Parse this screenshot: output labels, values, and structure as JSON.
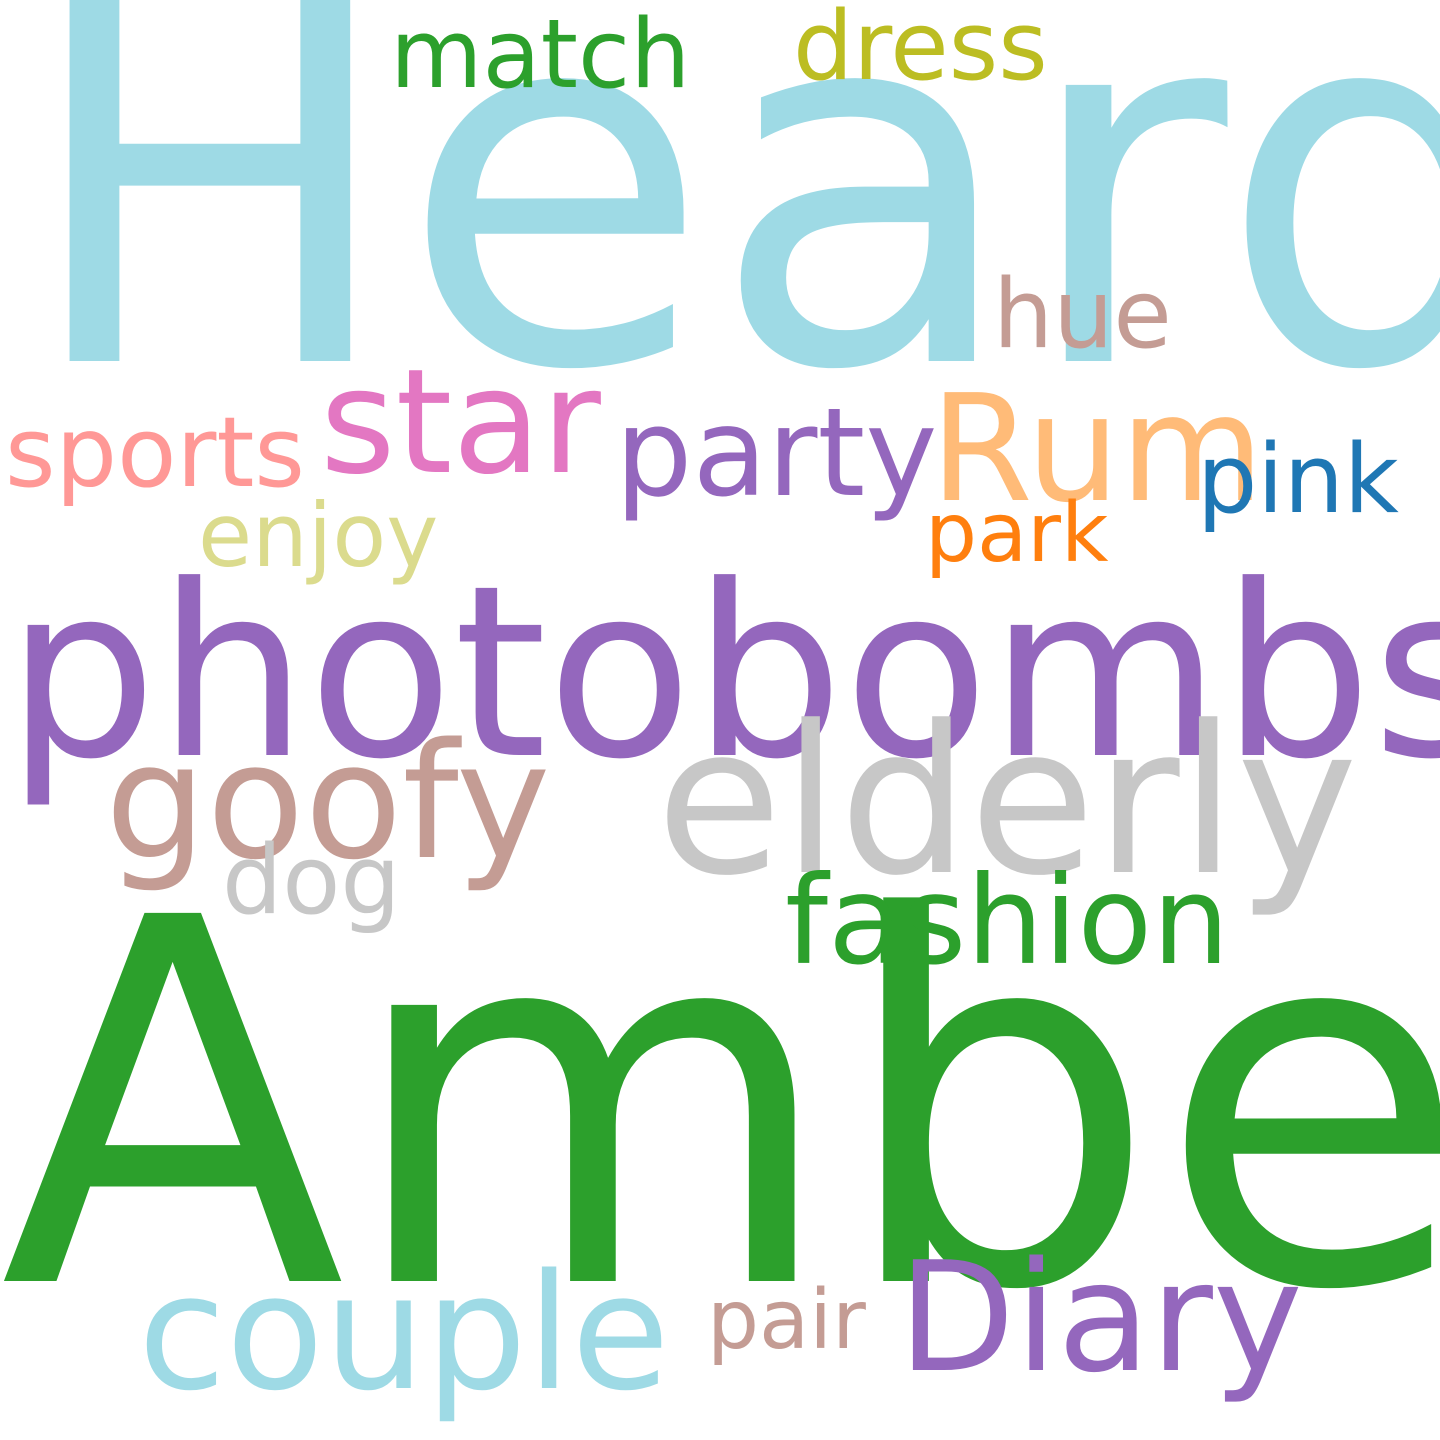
{
  "words": [
    {
      "id": "heard",
      "text": "Heard",
      "color": "#9edae5"
    },
    {
      "id": "amber",
      "text": "Amber",
      "color": "#2ca02c"
    },
    {
      "id": "photobombs",
      "text": "photobombs",
      "color": "#9467bd"
    },
    {
      "id": "elderly",
      "text": "elderly",
      "color": "#c7c7c7"
    },
    {
      "id": "star",
      "text": "star",
      "color": "#e377c2"
    },
    {
      "id": "rum",
      "text": "Rum",
      "color": "#ffbb78"
    },
    {
      "id": "goofy",
      "text": "goofy",
      "color": "#c49c94"
    },
    {
      "id": "couple",
      "text": "couple",
      "color": "#9edae5"
    },
    {
      "id": "diary",
      "text": "Diary",
      "color": "#9467bd"
    },
    {
      "id": "party",
      "text": "party",
      "color": "#9467bd"
    },
    {
      "id": "fashion",
      "text": "fashion",
      "color": "#2ca02c"
    },
    {
      "id": "sports",
      "text": "sports",
      "color": "#ff9896"
    },
    {
      "id": "pink",
      "text": "pink",
      "color": "#1f77b4"
    },
    {
      "id": "match",
      "text": "match",
      "color": "#2ca02c"
    },
    {
      "id": "dress",
      "text": "dress",
      "color": "#bcbd22"
    },
    {
      "id": "hue",
      "text": "hue",
      "color": "#c49c94"
    },
    {
      "id": "dog",
      "text": "dog",
      "color": "#c7c7c7"
    },
    {
      "id": "enjoy",
      "text": "enjoy",
      "color": "#dbdb8d"
    },
    {
      "id": "park",
      "text": "park",
      "color": "#ff7f0e"
    },
    {
      "id": "pair",
      "text": "pair",
      "color": "#c49c94"
    }
  ]
}
